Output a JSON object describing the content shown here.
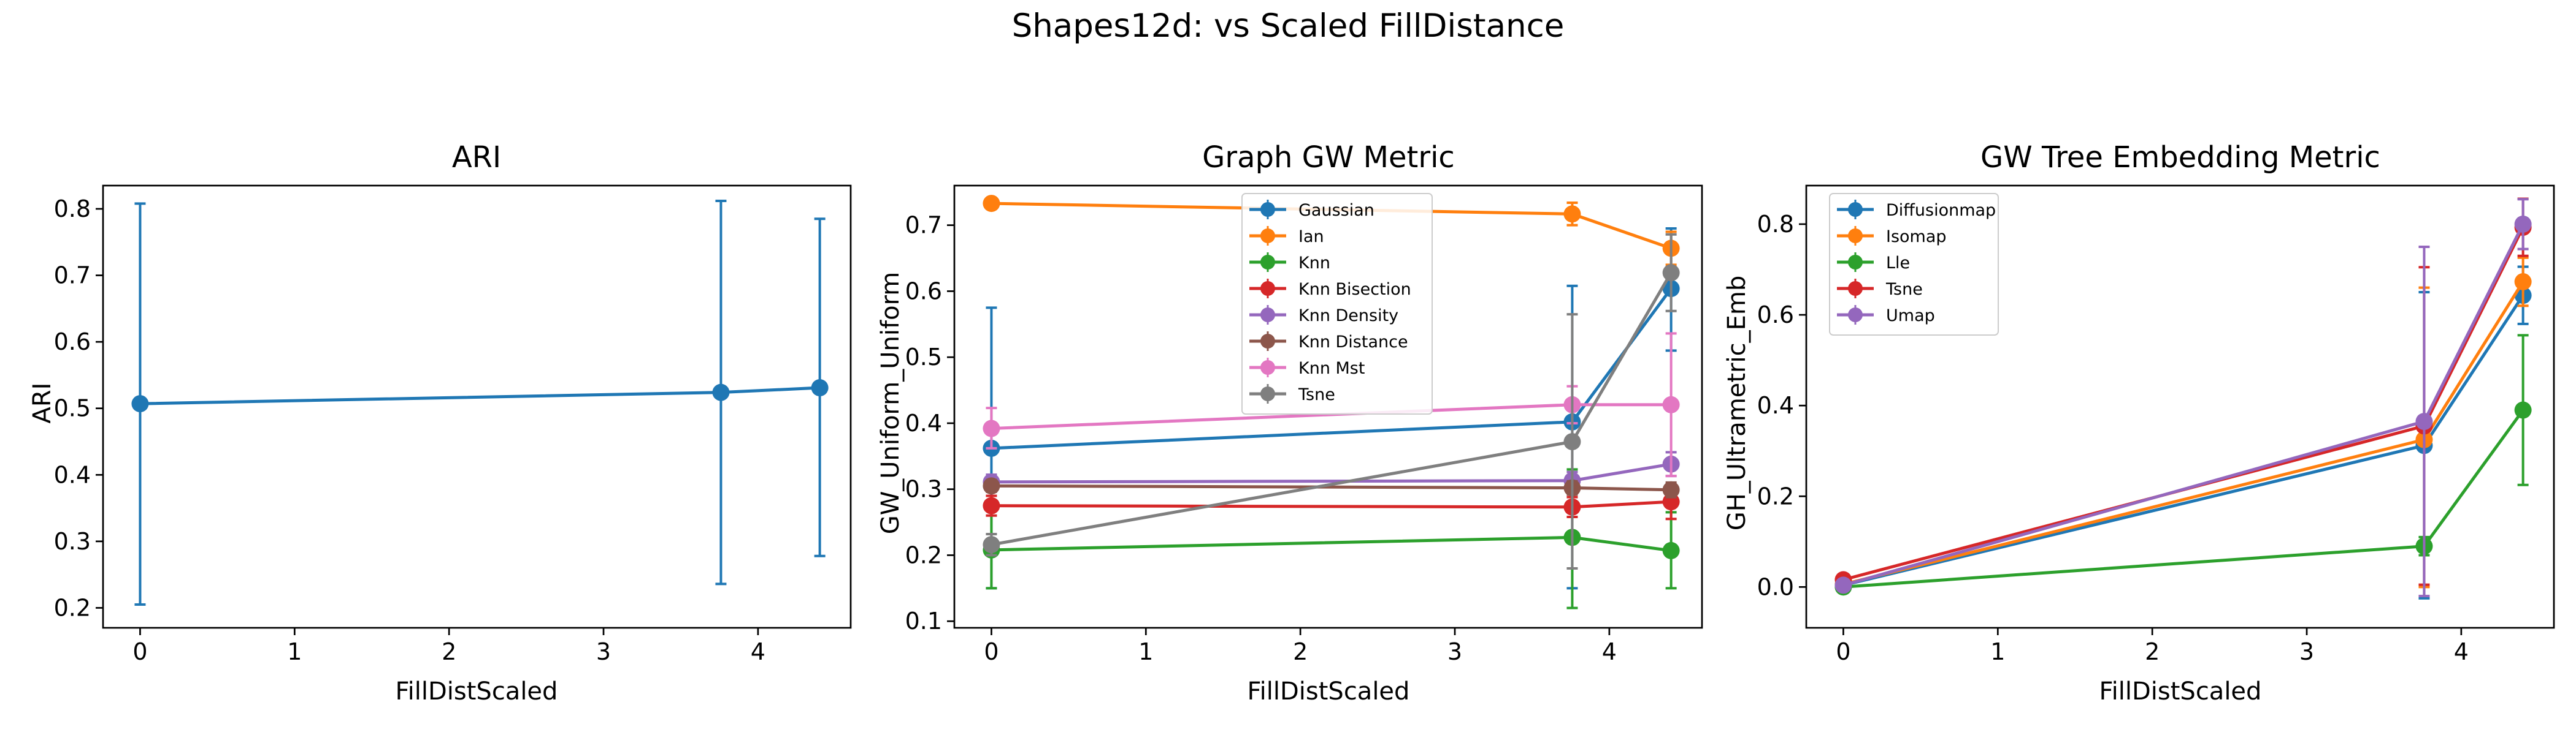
{
  "figure": {
    "title": "Shapes12d: vs Scaled FillDistance"
  },
  "chart_data": [
    {
      "type": "line",
      "title": "ARI",
      "xlabel": "FillDistScaled",
      "ylabel": "ARI",
      "xlim": [
        -0.24,
        4.6
      ],
      "ylim": [
        0.17,
        0.835
      ],
      "xticks": [
        0,
        1,
        2,
        3,
        4
      ],
      "yticks": [
        0.2,
        0.3,
        0.4,
        0.5,
        0.6,
        0.7,
        0.8
      ],
      "grid": false,
      "legend": "none",
      "x": [
        0,
        3.76,
        4.4
      ],
      "series": [
        {
          "name": "",
          "color": "#1f77b4",
          "values": [
            0.507,
            0.524,
            0.531
          ],
          "err_low": [
            0.205,
            0.236,
            0.278
          ],
          "err_high": [
            0.808,
            0.812,
            0.785
          ]
        }
      ]
    },
    {
      "type": "line",
      "title": "Graph GW Metric",
      "xlabel": "FillDistScaled",
      "ylabel": "GW_Uniform_Uniform",
      "xlim": [
        -0.24,
        4.6
      ],
      "ylim": [
        0.09,
        0.76
      ],
      "xticks": [
        0,
        1,
        2,
        3,
        4
      ],
      "yticks": [
        0.1,
        0.2,
        0.3,
        0.4,
        0.5,
        0.6,
        0.7
      ],
      "grid": false,
      "legend": "upper center",
      "x": [
        0,
        3.76,
        4.4
      ],
      "series": [
        {
          "name": "Gaussian",
          "color": "#1f77b4",
          "values": [
            0.362,
            0.402,
            0.604
          ],
          "err_low": [
            0.15,
            0.15,
            0.51
          ],
          "err_high": [
            0.575,
            0.608,
            0.695
          ]
        },
        {
          "name": "Ian",
          "color": "#ff7f0e",
          "values": [
            0.733,
            0.717,
            0.665
          ],
          "err_low": [
            0.725,
            0.7,
            0.64
          ],
          "err_high": [
            0.74,
            0.734,
            0.69
          ]
        },
        {
          "name": "Knn",
          "color": "#2ca02c",
          "values": [
            0.208,
            0.227,
            0.207
          ],
          "err_low": [
            0.15,
            0.12,
            0.15
          ],
          "err_high": [
            0.27,
            0.33,
            0.265
          ]
        },
        {
          "name": "Knn Bisection",
          "color": "#d62728",
          "values": [
            0.275,
            0.273,
            0.281
          ],
          "err_low": [
            0.26,
            0.258,
            0.255
          ],
          "err_high": [
            0.29,
            0.288,
            0.307
          ]
        },
        {
          "name": "Knn Density",
          "color": "#9467bd",
          "values": [
            0.311,
            0.313,
            0.338
          ],
          "err_low": [
            0.3,
            0.3,
            0.32
          ],
          "err_high": [
            0.322,
            0.326,
            0.356
          ]
        },
        {
          "name": "Knn Distance",
          "color": "#8c564b",
          "values": [
            0.305,
            0.302,
            0.299
          ],
          "err_low": [
            0.296,
            0.292,
            0.288
          ],
          "err_high": [
            0.314,
            0.312,
            0.31
          ]
        },
        {
          "name": "Knn Mst",
          "color": "#e377c2",
          "values": [
            0.392,
            0.428,
            0.428
          ],
          "err_low": [
            0.362,
            0.4,
            0.32
          ],
          "err_high": [
            0.423,
            0.456,
            0.536
          ]
        },
        {
          "name": "Tsne",
          "color": "#7f7f7f",
          "values": [
            0.216,
            0.372,
            0.628
          ],
          "err_low": [
            0.2,
            0.18,
            0.57
          ],
          "err_high": [
            0.232,
            0.565,
            0.686
          ]
        }
      ]
    },
    {
      "type": "line",
      "title": "GW Tree Embedding Metric",
      "xlabel": "FillDistScaled",
      "ylabel": "GH_Ultrametric_Emb",
      "xlim": [
        -0.24,
        4.6
      ],
      "ylim": [
        -0.09,
        0.885
      ],
      "xticks": [
        0,
        1,
        2,
        3,
        4
      ],
      "yticks": [
        0.0,
        0.2,
        0.4,
        0.6,
        0.8
      ],
      "grid": false,
      "legend": "upper left",
      "x": [
        0,
        3.76,
        4.4
      ],
      "series": [
        {
          "name": "Diffusionmap",
          "color": "#1f77b4",
          "values": [
            0.004,
            0.312,
            0.643
          ],
          "err_low": [
            0.0,
            -0.025,
            0.58
          ],
          "err_high": [
            0.008,
            0.65,
            0.706
          ]
        },
        {
          "name": "Isomap",
          "color": "#ff7f0e",
          "values": [
            0.006,
            0.325,
            0.673
          ],
          "err_low": [
            0.0,
            0.0,
            0.62
          ],
          "err_high": [
            0.012,
            0.66,
            0.726
          ]
        },
        {
          "name": "Lle",
          "color": "#2ca02c",
          "values": [
            0.0,
            0.09,
            0.39
          ],
          "err_low": [
            0.0,
            0.07,
            0.225
          ],
          "err_high": [
            0.0,
            0.11,
            0.555
          ]
        },
        {
          "name": "Tsne",
          "color": "#d62728",
          "values": [
            0.016,
            0.355,
            0.793
          ],
          "err_low": [
            0.006,
            0.005,
            0.73
          ],
          "err_high": [
            0.026,
            0.705,
            0.856
          ]
        },
        {
          "name": "Umap",
          "color": "#9467bd",
          "values": [
            0.004,
            0.365,
            0.8
          ],
          "err_low": [
            0.0,
            -0.02,
            0.745
          ],
          "err_high": [
            0.008,
            0.75,
            0.855
          ]
        }
      ]
    }
  ]
}
